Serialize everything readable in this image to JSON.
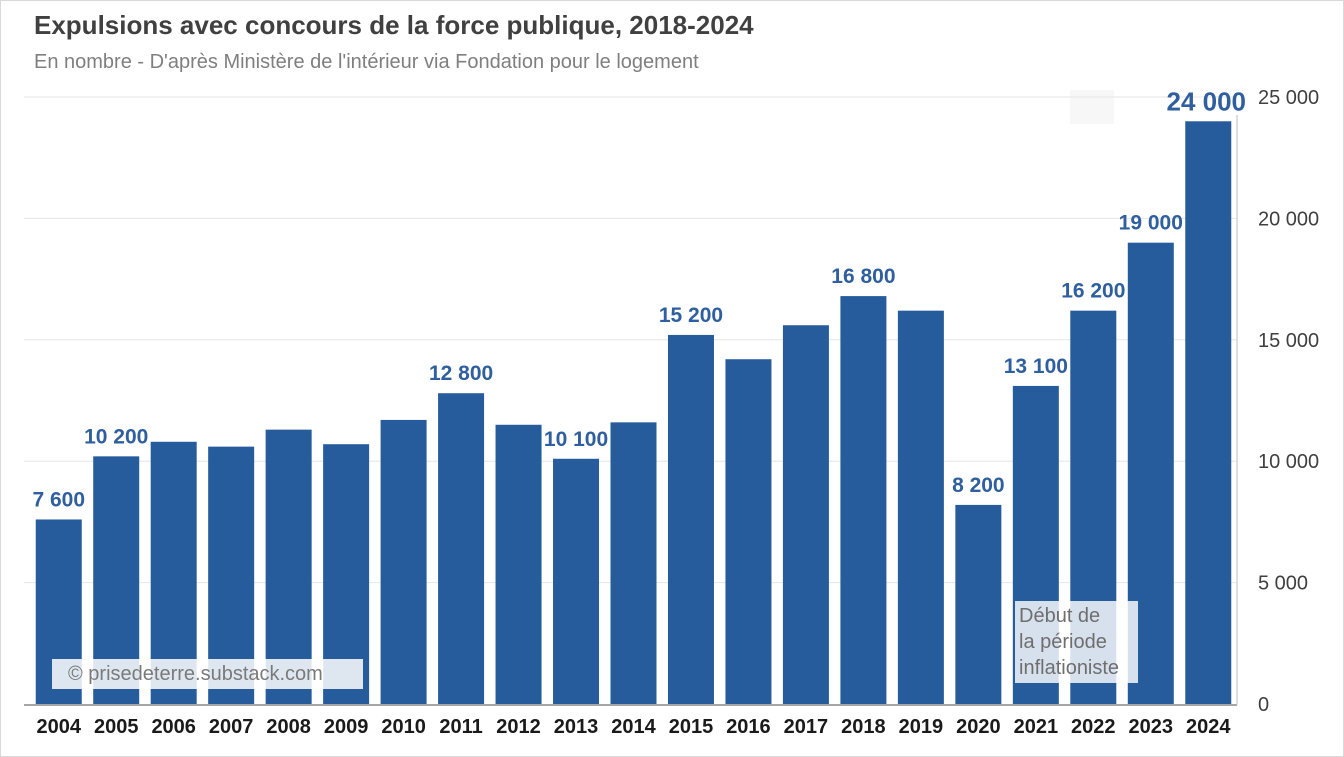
{
  "header": {
    "title": "Expulsions avec concours de la force publique, 2018-2024",
    "subtitle": "En nombre - D'après Ministère de l'intérieur via Fondation pour le logement"
  },
  "watermark": "© prisedeterre.substack.com",
  "annotation": {
    "lines": [
      "Début de",
      "la période",
      "inflationiste"
    ]
  },
  "colors": {
    "bar": "#265c9b",
    "label": "#2f5f9e",
    "grid": "#e6e6e6"
  },
  "chart_data": {
    "type": "bar",
    "title": "Expulsions avec concours de la force publique, 2018-2024",
    "subtitle": "En nombre - D'après Ministère de l'intérieur via Fondation pour le logement",
    "categories": [
      "2004",
      "2005",
      "2006",
      "2007",
      "2008",
      "2009",
      "2010",
      "2011",
      "2012",
      "2013",
      "2014",
      "2015",
      "2016",
      "2017",
      "2018",
      "2019",
      "2020",
      "2021",
      "2022",
      "2023",
      "2024"
    ],
    "values": [
      7600,
      10200,
      10800,
      10600,
      11300,
      10700,
      11700,
      12800,
      11500,
      10100,
      11600,
      15200,
      14200,
      15600,
      16800,
      16200,
      8200,
      13100,
      16200,
      19000,
      24000
    ],
    "data_labels": {
      "2004": "7 600",
      "2005": "10 200",
      "2011": "12 800",
      "2013": "10 100",
      "2015": "15 200",
      "2018": "16 800",
      "2020": "8 200",
      "2021": "13 100",
      "2022": "16 200",
      "2023": "19 000",
      "2024": "24 000"
    },
    "ylim": [
      0,
      25000
    ],
    "yticks": [
      0,
      5000,
      10000,
      15000,
      20000,
      25000
    ],
    "ytick_labels": [
      "0",
      "5 000",
      "10 000",
      "15 000",
      "20 000",
      "25 000"
    ],
    "y_axis_side": "right",
    "grid": true,
    "legend": "none"
  }
}
